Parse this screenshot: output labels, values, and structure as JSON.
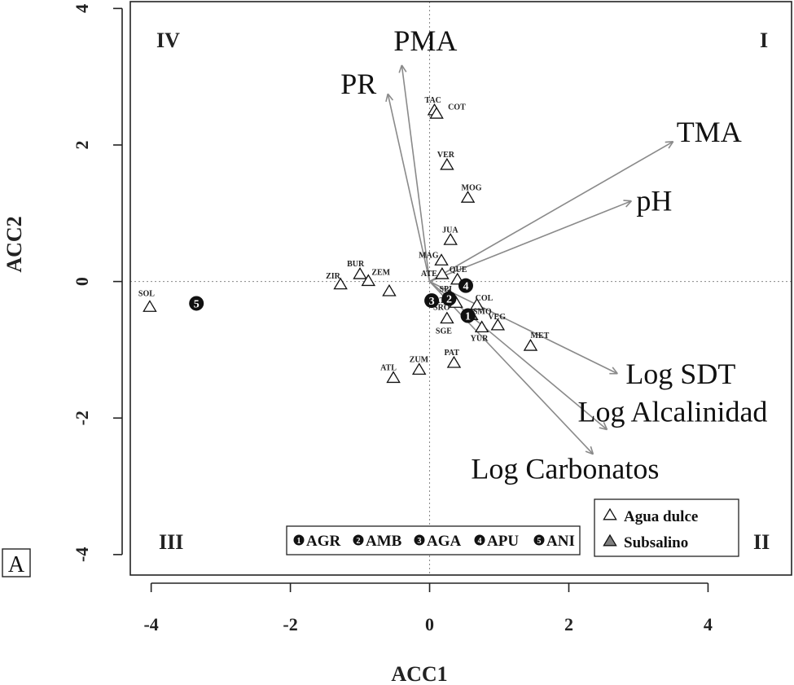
{
  "chart_data": {
    "type": "scatter",
    "title": "",
    "panel_label": "A",
    "xlabel": "ACC1",
    "ylabel": "ACC2",
    "xlim": [
      -4.3,
      5.2
    ],
    "ylim": [
      -4.3,
      4.1
    ],
    "x_ticks": [
      -4,
      -2,
      0,
      2,
      4
    ],
    "y_ticks": [
      -4,
      -2,
      0,
      2,
      4
    ],
    "x_tick_labels": [
      "-4",
      "-2",
      "0",
      "2",
      "4"
    ],
    "y_tick_labels": [
      "-4",
      "-2",
      "0",
      "2",
      "4"
    ],
    "reference_lines": {
      "x": 0,
      "y": 0,
      "style": "dotted"
    },
    "quadrant_labels": [
      {
        "text": "I",
        "position": "top-right"
      },
      {
        "text": "II",
        "position": "bottom-right"
      },
      {
        "text": "III",
        "position": "bottom-left"
      },
      {
        "text": "IV",
        "position": "top-left"
      }
    ],
    "sites": [
      {
        "label": "TAC",
        "x": 0.07,
        "y": 2.5,
        "type": "Agua dulce"
      },
      {
        "label": "COT",
        "x": 0.1,
        "y": 2.45,
        "type": "Agua dulce"
      },
      {
        "label": "VER",
        "x": 0.25,
        "y": 1.7,
        "type": "Agua dulce"
      },
      {
        "label": "MOG",
        "x": 0.55,
        "y": 1.22,
        "type": "Agua dulce"
      },
      {
        "label": "JUA",
        "x": 0.3,
        "y": 0.6,
        "type": "Agua dulce"
      },
      {
        "label": "MAG",
        "x": 0.17,
        "y": 0.3,
        "type": "Agua dulce"
      },
      {
        "label": "QUE",
        "x": 0.4,
        "y": 0.02,
        "type": "Agua dulce"
      },
      {
        "label": "ATE",
        "x": 0.18,
        "y": 0.1,
        "type": "Agua dulce"
      },
      {
        "label": "SPI",
        "x": 0.28,
        "y": -0.22,
        "type": "Agua dulce"
      },
      {
        "label": "TAT",
        "x": 0.3,
        "y": -0.27,
        "type": "Agua dulce"
      },
      {
        "label": "SRO",
        "x": 0.38,
        "y": -0.32,
        "type": "Agua dulce"
      },
      {
        "label": "COL",
        "x": 0.68,
        "y": -0.35,
        "type": "Agua dulce"
      },
      {
        "label": "SMO",
        "x": 0.6,
        "y": -0.5,
        "type": "Subsalino"
      },
      {
        "label": "SGE",
        "x": 0.25,
        "y": -0.55,
        "type": "Agua dulce"
      },
      {
        "label": "YUR",
        "x": 0.75,
        "y": -0.68,
        "type": "Agua dulce"
      },
      {
        "label": "VEG",
        "x": 0.98,
        "y": -0.65,
        "type": "Agua dulce"
      },
      {
        "label": "MET",
        "x": 1.45,
        "y": -0.95,
        "type": "Agua dulce"
      },
      {
        "label": "PAT",
        "x": 0.35,
        "y": -1.2,
        "type": "Agua dulce"
      },
      {
        "label": "ZUM",
        "x": -0.15,
        "y": -1.3,
        "type": "Agua dulce"
      },
      {
        "label": "ATL",
        "x": -0.52,
        "y": -1.42,
        "type": "Agua dulce"
      },
      {
        "label": "BUR",
        "x": -1.0,
        "y": 0.1,
        "type": "Agua dulce"
      },
      {
        "label": "ZIR",
        "x": -1.28,
        "y": -0.05,
        "type": "Agua dulce"
      },
      {
        "label": "ZEM",
        "x": -0.88,
        "y": 0.0,
        "type": "Agua dulce"
      },
      {
        "label": "",
        "x": -0.58,
        "y": -0.15,
        "type": "Agua dulce"
      },
      {
        "label": "SOL",
        "x": -4.02,
        "y": -0.38,
        "type": "Agua dulce"
      }
    ],
    "centroids": [
      {
        "id": "1",
        "name": "AGR",
        "x": 0.55,
        "y": -0.5
      },
      {
        "id": "2",
        "name": "AMB",
        "x": 0.28,
        "y": -0.25
      },
      {
        "id": "3",
        "name": "AGA",
        "x": 0.03,
        "y": -0.28
      },
      {
        "id": "4",
        "name": "APU",
        "x": 0.52,
        "y": -0.06
      },
      {
        "id": "5",
        "name": "ANI",
        "x": -3.35,
        "y": -0.32
      }
    ],
    "environmental_vectors": [
      {
        "label": "PMA",
        "x": -0.4,
        "y": 3.17
      },
      {
        "label": "PR",
        "x": -0.6,
        "y": 2.75
      },
      {
        "label": "TMA",
        "x": 3.5,
        "y": 2.05
      },
      {
        "label": "pH",
        "x": 2.9,
        "y": 1.18
      },
      {
        "label": "Log SDT",
        "x": 2.7,
        "y": -1.35
      },
      {
        "label": "Log Alcalinidad",
        "x": 2.55,
        "y": -2.17
      },
      {
        "label": "Log Carbonatos",
        "x": 2.35,
        "y": -2.53
      }
    ],
    "legend_groups": {
      "position": "bottom-center",
      "entries": [
        {
          "symbol": "1",
          "label": "AGR"
        },
        {
          "symbol": "2",
          "label": "AMB"
        },
        {
          "symbol": "3",
          "label": "AGA"
        },
        {
          "symbol": "4",
          "label": "APU"
        },
        {
          "symbol": "5",
          "label": "ANI"
        }
      ]
    },
    "legend_types": {
      "position": "bottom-right",
      "entries": [
        {
          "label": "Agua dulce",
          "marker": "open-triangle",
          "color": "#ffffff"
        },
        {
          "label": "Subsalino",
          "marker": "filled-triangle",
          "color": "#7f7f7f"
        }
      ]
    },
    "colors": {
      "arrow": "#8a8a8a",
      "centroid": "#111111",
      "axis": "#222222"
    }
  }
}
